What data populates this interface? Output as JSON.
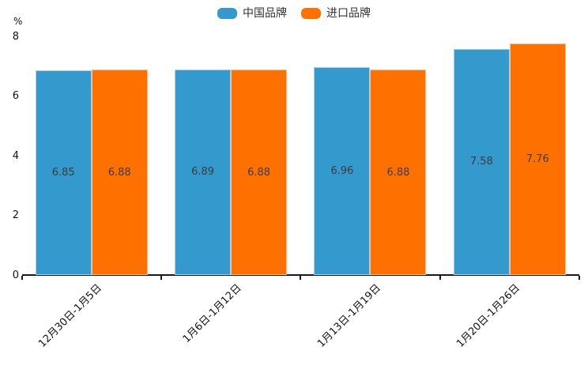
{
  "chart_data": {
    "type": "bar",
    "title": "",
    "unit_label": "%",
    "categories": [
      "12月30日-1月5日",
      "1月6日-1月12日",
      "1月13日-1月19日",
      "1月20日-1月26日"
    ],
    "series": [
      {
        "name": "中国品牌",
        "color": "#3499cc",
        "values": [
          6.85,
          6.89,
          6.96,
          7.58
        ]
      },
      {
        "name": "进口品牌",
        "color": "#fe7101",
        "values": [
          6.88,
          6.88,
          6.88,
          7.76
        ]
      }
    ],
    "value_labels": {
      "中国品牌": [
        "6.85",
        "6.89",
        "6.96",
        "7.58"
      ],
      "进口品牌": [
        "6.88",
        "6.88",
        "6.88",
        "7.76"
      ]
    },
    "ylim": [
      0,
      8
    ],
    "yticks": [
      "0",
      "2",
      "4",
      "6",
      "8"
    ],
    "grid": false,
    "legend_position": "top-center",
    "xlabel": "",
    "ylabel": "%"
  }
}
